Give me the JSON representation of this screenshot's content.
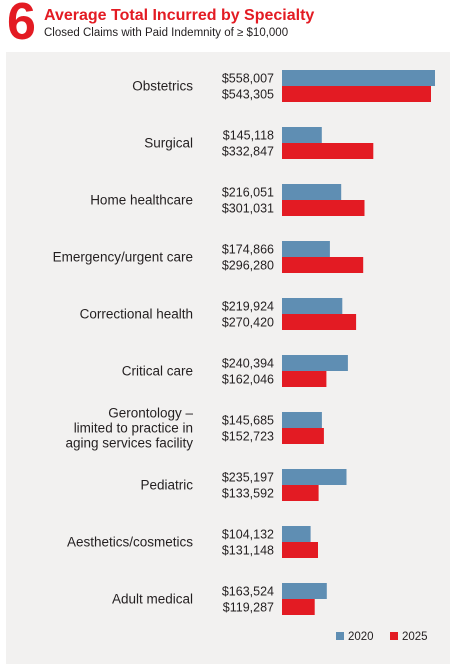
{
  "header": {
    "figure_number": "6",
    "title": "Average Total Incurred by Specialty",
    "subtitle": "Closed Claims with Paid Indemnity of ≥ $10,000"
  },
  "colors": {
    "accent": "#e31b23",
    "series_2020": "#5f8eb3",
    "series_2025": "#e31b23",
    "panel_bg": "#f2f1f0",
    "text": "#231f20"
  },
  "chart_data": {
    "type": "bar",
    "orientation": "horizontal",
    "title": "Average Total Incurred by Specialty",
    "subtitle": "Closed Claims with Paid Indemnity of ≥ $10,000",
    "categories": [
      [
        "Obstetrics"
      ],
      [
        "Surgical"
      ],
      [
        "Home healthcare"
      ],
      [
        "Emergency/urgent care"
      ],
      [
        "Correctional health"
      ],
      [
        "Critical care"
      ],
      [
        "Gerontology –",
        "limited to practice in",
        "aging services facility"
      ],
      [
        "Pediatric"
      ],
      [
        "Aesthetics/cosmetics"
      ],
      [
        "Adult medical"
      ]
    ],
    "series": [
      {
        "name": "2020",
        "color": "#5f8eb3",
        "values": [
          558007,
          145118,
          216051,
          174866,
          219924,
          240394,
          145685,
          235197,
          104132,
          163524
        ],
        "labels": [
          "$558,007",
          "$145,118",
          "$216,051",
          "$174,866",
          "$219,924",
          "$240,394",
          "$145,685",
          "$235,197",
          "$104,132",
          "$163,524"
        ]
      },
      {
        "name": "2025",
        "color": "#e31b23",
        "values": [
          543305,
          332847,
          301031,
          296280,
          270420,
          162046,
          152723,
          133592,
          131148,
          119287
        ],
        "labels": [
          "$543,305",
          "$332,847",
          "$301,031",
          "$296,280",
          "$270,420",
          "$162,046",
          "$152,723",
          "$133,592",
          "$131,148",
          "$119,287"
        ]
      }
    ],
    "xlim": [
      0,
      558007
    ],
    "grid": false,
    "legend_position": "bottom-right"
  }
}
